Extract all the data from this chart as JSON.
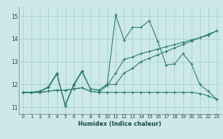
{
  "xlabel": "Humidex (Indice chaleur)",
  "ylabel": "",
  "bg_color": "#cce8e8",
  "grid_color": "#aacfcf",
  "line_color": "#2a7a6e",
  "xlim": [
    -0.5,
    23.5
  ],
  "ylim": [
    10.7,
    15.4
  ],
  "xticks": [
    0,
    1,
    2,
    3,
    4,
    5,
    6,
    7,
    8,
    9,
    10,
    11,
    12,
    13,
    14,
    15,
    16,
    17,
    18,
    19,
    20,
    21,
    22,
    23
  ],
  "yticks": [
    11,
    12,
    13,
    14,
    15
  ],
  "series1": {
    "x": [
      0,
      1,
      2,
      3,
      4,
      5,
      6,
      7,
      8,
      9,
      10,
      11,
      12,
      13,
      14,
      15,
      16,
      17,
      18,
      19,
      20,
      21,
      22,
      23
    ],
    "y": [
      11.65,
      11.65,
      11.7,
      11.9,
      12.5,
      11.1,
      12.0,
      12.6,
      11.8,
      11.75,
      12.0,
      15.05,
      13.95,
      14.5,
      14.5,
      14.8,
      13.9,
      12.85,
      12.9,
      13.35,
      12.9,
      12.0,
      11.7,
      11.35
    ]
  },
  "series2": {
    "x": [
      0,
      1,
      2,
      3,
      4,
      5,
      6,
      7,
      8,
      9,
      10,
      11,
      12,
      13,
      14,
      15,
      16,
      17,
      18,
      19,
      20,
      21,
      22,
      23
    ],
    "y": [
      11.65,
      11.65,
      11.7,
      11.85,
      12.45,
      11.05,
      11.95,
      12.55,
      11.8,
      11.75,
      12.0,
      12.0,
      12.5,
      12.7,
      13.0,
      13.15,
      13.3,
      13.45,
      13.6,
      13.75,
      13.9,
      14.05,
      14.2,
      14.35
    ]
  },
  "series3": {
    "x": [
      0,
      1,
      2,
      3,
      4,
      5,
      6,
      7,
      8,
      9,
      10,
      11,
      12,
      13,
      14,
      15,
      16,
      17,
      18,
      19,
      20,
      21,
      22,
      23
    ],
    "y": [
      11.65,
      11.65,
      11.65,
      11.7,
      11.75,
      11.75,
      11.8,
      11.85,
      11.7,
      11.65,
      11.65,
      11.65,
      11.65,
      11.65,
      11.65,
      11.65,
      11.65,
      11.65,
      11.65,
      11.65,
      11.65,
      11.6,
      11.5,
      11.35
    ]
  },
  "series4": {
    "x": [
      0,
      1,
      2,
      3,
      4,
      5,
      6,
      7,
      8,
      9,
      10,
      11,
      12,
      13,
      14,
      15,
      16,
      17,
      18,
      19,
      20,
      21,
      22,
      23
    ],
    "y": [
      11.65,
      11.65,
      11.65,
      11.7,
      11.75,
      11.75,
      11.8,
      11.85,
      11.7,
      11.65,
      11.95,
      12.5,
      13.1,
      13.2,
      13.35,
      13.45,
      13.55,
      13.65,
      13.75,
      13.85,
      13.95,
      14.05,
      14.15,
      14.35
    ]
  }
}
